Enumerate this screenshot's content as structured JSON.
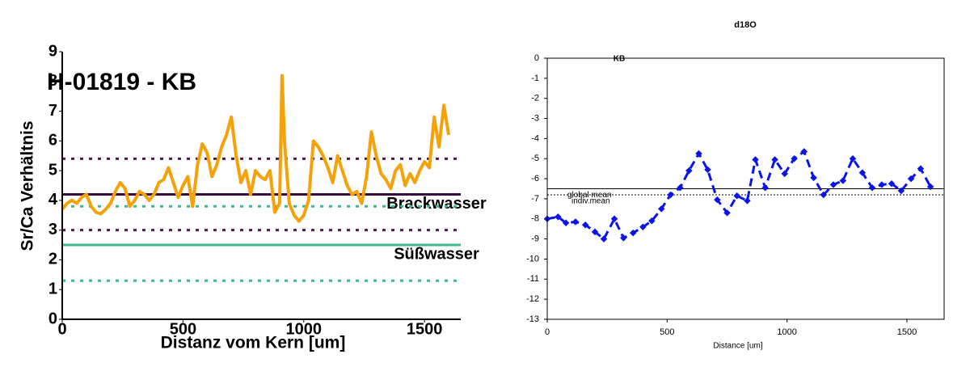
{
  "chart_data": [
    {
      "type": "line",
      "title": "H-01819 - KB",
      "xlabel": "Distanz vom Kern [um]",
      "ylabel": "Sr/Ca Verhältnis",
      "xlim": [
        0,
        1650
      ],
      "ylim": [
        0,
        9
      ],
      "xticks": [
        0,
        500,
        1000,
        1500
      ],
      "yticks": [
        0,
        1,
        2,
        3,
        4,
        5,
        6,
        7,
        8,
        9
      ],
      "series": [
        {
          "color": "#f5a20a",
          "dashed": false,
          "markers": false,
          "x": [
            0,
            20,
            40,
            60,
            80,
            100,
            120,
            140,
            160,
            180,
            200,
            220,
            240,
            260,
            280,
            300,
            320,
            340,
            360,
            380,
            400,
            420,
            440,
            460,
            480,
            500,
            520,
            540,
            560,
            580,
            600,
            620,
            640,
            660,
            680,
            700,
            720,
            740,
            760,
            780,
            800,
            820,
            840,
            860,
            880,
            900,
            910,
            920,
            940,
            960,
            980,
            1000,
            1020,
            1040,
            1060,
            1080,
            1100,
            1120,
            1140,
            1160,
            1180,
            1200,
            1220,
            1240,
            1260,
            1280,
            1300,
            1320,
            1340,
            1360,
            1380,
            1400,
            1420,
            1440,
            1460,
            1480,
            1500,
            1520,
            1540,
            1560,
            1580,
            1600
          ],
          "values": [
            3.7,
            3.9,
            4.0,
            3.9,
            4.1,
            4.2,
            3.8,
            3.6,
            3.55,
            3.7,
            3.9,
            4.3,
            4.6,
            4.4,
            3.8,
            4.0,
            4.3,
            4.2,
            4.0,
            4.2,
            4.6,
            4.7,
            5.1,
            4.6,
            4.1,
            4.5,
            4.8,
            3.8,
            5.2,
            5.9,
            5.6,
            4.8,
            5.2,
            5.8,
            6.2,
            6.8,
            5.5,
            4.6,
            5.0,
            4.2,
            5.0,
            4.8,
            4.7,
            5.0,
            3.6,
            3.9,
            8.2,
            6.0,
            3.9,
            3.5,
            3.3,
            3.5,
            4.0,
            6.0,
            5.8,
            5.5,
            5.1,
            4.6,
            5.5,
            5.0,
            4.5,
            4.2,
            4.3,
            3.9,
            4.8,
            6.3,
            5.5,
            4.9,
            4.7,
            4.4,
            5.0,
            5.2,
            4.5,
            4.9,
            4.6,
            5.0,
            5.3,
            5.1,
            6.8,
            5.8,
            7.2,
            6.2
          ]
        }
      ],
      "hlines": [
        {
          "value": 5.4,
          "color": "#4b1a4b",
          "dashed": true
        },
        {
          "value": 4.2,
          "color": "#3a0a45",
          "dashed": false,
          "label": "Brackwasser"
        },
        {
          "value": 3.8,
          "color": "#3cb88a",
          "dashed": true
        },
        {
          "value": 3.0,
          "color": "#4b1a4b",
          "dashed": true
        },
        {
          "value": 2.5,
          "color": "#3cb88a",
          "dashed": false,
          "label": "Süßwasser"
        },
        {
          "value": 1.3,
          "color": "#3cb88a",
          "dashed": true
        }
      ]
    },
    {
      "type": "line",
      "title": "d18O",
      "subtitle": "KB",
      "xlabel": "Distance [um]",
      "xlim": [
        0,
        1655
      ],
      "ylim": [
        -13,
        0
      ],
      "xticks": [
        0,
        500,
        1000,
        1500
      ],
      "yticks": [
        -13,
        -12,
        -11,
        -10,
        -9,
        -8,
        -7,
        -6,
        -5,
        -4,
        -3,
        -2,
        -1,
        0
      ],
      "series": [
        {
          "color": "#0a14e6",
          "dashed": true,
          "markers": true,
          "x": [
            0,
            45,
            78,
            118,
            159,
            199,
            236,
            280,
            318,
            358,
            399,
            436,
            476,
            514,
            554,
            591,
            632,
            669,
            709,
            750,
            791,
            834,
            868,
            909,
            949,
            990,
            1030,
            1071,
            1111,
            1152,
            1193,
            1233,
            1274,
            1314,
            1355,
            1395,
            1436,
            1476,
            1517,
            1557,
            1598
          ],
          "values": [
            -8.0,
            -7.9,
            -8.2,
            -8.15,
            -8.3,
            -8.65,
            -9.0,
            -8.0,
            -8.95,
            -8.7,
            -8.4,
            -8.1,
            -7.5,
            -6.8,
            -6.45,
            -5.6,
            -4.75,
            -5.55,
            -7.05,
            -7.7,
            -6.85,
            -7.1,
            -5.05,
            -6.45,
            -5.05,
            -5.75,
            -5.0,
            -4.65,
            -5.95,
            -6.8,
            -6.3,
            -6.1,
            -5.0,
            -5.7,
            -6.45,
            -6.3,
            -6.25,
            -6.6,
            -6.0,
            -5.5,
            -6.4
          ]
        }
      ],
      "hlines": [
        {
          "value": -6.5,
          "color": "#000000",
          "dashed": false,
          "label": "global mean"
        },
        {
          "value": -6.8,
          "color": "#000000",
          "dashed": true,
          "label": "indiv.mean"
        }
      ]
    }
  ]
}
